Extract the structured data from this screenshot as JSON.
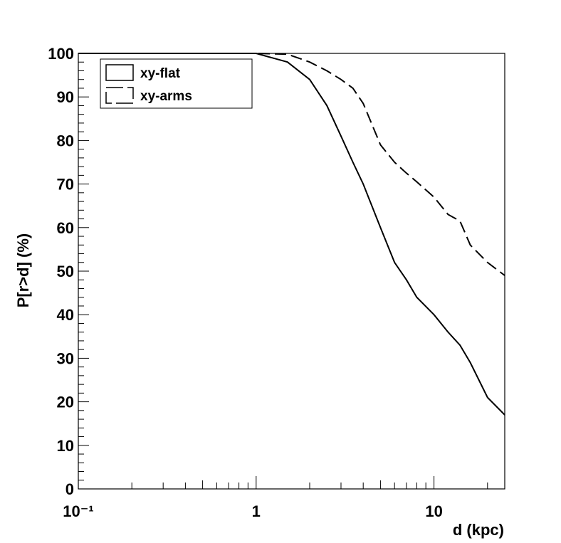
{
  "chart_data": {
    "type": "line",
    "x_label": "d (kpc)",
    "y_label": "P[r>d] (%)",
    "x": [
      0.1,
      1,
      1.5,
      2,
      2.5,
      3,
      3.5,
      4,
      5,
      6,
      7,
      8,
      10,
      12,
      14,
      16,
      20,
      25
    ],
    "series": [
      {
        "name": "xy-flat",
        "color": "#000000",
        "dash": "solid",
        "values": [
          100,
          100,
          98,
          94,
          88,
          81,
          75,
          70,
          60,
          52,
          48,
          44,
          40,
          36,
          33,
          29,
          21,
          17
        ]
      },
      {
        "name": "xy-arms",
        "color": "#000000",
        "dash": "dashed",
        "values": [
          100,
          100,
          99.8,
          98,
          96,
          94,
          92,
          88.5,
          79,
          75,
          72.5,
          70.5,
          67,
          63,
          61.5,
          56,
          52,
          49
        ]
      }
    ],
    "xlim": [
      0.1,
      25
    ],
    "log_x": true,
    "xticks": [
      {
        "value": 0.1,
        "label": "10⁻¹"
      },
      1,
      10
    ],
    "ylim": [
      0,
      100
    ],
    "yticks": [
      0,
      10,
      20,
      30,
      40,
      50,
      60,
      70,
      80,
      90,
      100
    ],
    "legend": "top-left"
  }
}
